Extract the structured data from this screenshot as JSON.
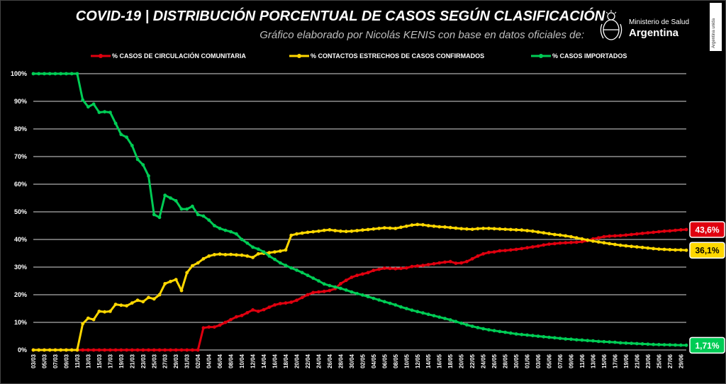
{
  "header": {
    "title": "COVID-19  |  DISTRIBUCIÓN PORCENTUAL DE CASOS SEGÚN CLASIFICACIÓN",
    "subtitle": "Gráfico elaborado por Nicolás KENIS con base en datos oficiales de:",
    "logo_ministry": "Ministerio de Salud",
    "logo_country": "Argentina",
    "side_label": "Argentina unida"
  },
  "colors": {
    "comunitaria": "#e0000f",
    "contactos": "#ffd700",
    "importados": "#00cc55",
    "grid": "#d9d9d9"
  },
  "chart_data": {
    "type": "line",
    "ylim": [
      0,
      100
    ],
    "yticks": [
      "0%",
      "10%",
      "20%",
      "30%",
      "40%",
      "50%",
      "60%",
      "70%",
      "80%",
      "90%",
      "100%"
    ],
    "xticks": [
      "03/03",
      "05/03",
      "07/03",
      "09/03",
      "11/03",
      "13/03",
      "15/03",
      "17/03",
      "19/03",
      "21/03",
      "23/03",
      "25/03",
      "27/03",
      "29/03",
      "31/03",
      "02/04",
      "04/04",
      "06/04",
      "08/04",
      "10/04",
      "12/04",
      "14/04",
      "16/04",
      "18/04",
      "20/04",
      "22/04",
      "24/04",
      "26/04",
      "28/04",
      "30/04",
      "02/05",
      "04/05",
      "06/05",
      "08/05",
      "10/05",
      "12/05",
      "14/05",
      "16/05",
      "18/05",
      "20/05",
      "22/05",
      "24/05",
      "26/05",
      "28/05",
      "30/05",
      "01/06",
      "03/06",
      "05/06",
      "07/06",
      "09/06",
      "11/06",
      "13/06",
      "15/06",
      "17/06",
      "19/06",
      "21/06",
      "23/06",
      "25/06",
      "27/06",
      "29/06"
    ],
    "n_points": 120,
    "series": [
      {
        "name": "% CASOS DE CIRCULACIÓN COMUNITARIA",
        "color_key": "comunitaria",
        "final_label": "43,6%",
        "values": [
          0,
          0,
          0,
          0,
          0,
          0,
          0,
          0,
          0,
          0,
          0,
          0,
          0,
          0,
          0,
          0,
          0,
          0,
          0,
          0,
          0,
          0,
          0,
          0,
          0,
          0,
          0,
          0,
          0,
          0,
          0,
          8,
          8.3,
          8.3,
          9,
          10,
          11,
          12,
          12.5,
          13.5,
          14.5,
          14,
          14.6,
          15.5,
          16.3,
          16.8,
          17,
          17.3,
          18,
          19,
          20,
          20.8,
          21,
          21.2,
          21.5,
          22.2,
          24,
          25.2,
          26.3,
          27,
          27.5,
          28,
          28.8,
          29.2,
          29.6,
          29.5,
          29.4,
          29.5,
          29.7,
          30.2,
          30.4,
          30.6,
          30.9,
          31.2,
          31.5,
          31.8,
          32,
          31.4,
          31.5,
          32,
          33,
          34,
          34.8,
          35.3,
          35.5,
          35.9,
          36,
          36.2,
          36.4,
          36.7,
          37,
          37.3,
          37.6,
          38,
          38.3,
          38.5,
          38.7,
          38.8,
          38.9,
          39,
          39.2,
          39.6,
          40.2,
          40.6,
          41,
          41.2,
          41.3,
          41.4,
          41.6,
          41.8,
          42,
          42.2,
          42.4,
          42.6,
          42.8,
          43,
          43.1,
          43.3,
          43.5,
          43.6
        ]
      },
      {
        "name": "% CONTACTOS ESTRECHOS DE CASOS CONFIRMADOS",
        "color_key": "contactos",
        "final_label": "36,1%",
        "values": [
          0,
          0,
          0,
          0,
          0,
          0,
          0,
          0,
          0,
          9.5,
          11.5,
          11,
          14,
          13.8,
          14,
          16.5,
          16.2,
          16,
          17,
          18,
          17.5,
          19,
          18.5,
          20,
          24,
          24.8,
          25.5,
          21.5,
          28,
          30.5,
          31.5,
          33,
          34,
          34.5,
          34.7,
          34.5,
          34.6,
          34.4,
          34.3,
          34,
          33.5,
          34.8,
          35,
          35.2,
          35.5,
          35.8,
          36.2,
          41.5,
          42,
          42.3,
          42.6,
          42.8,
          43,
          43.3,
          43.5,
          43.2,
          43,
          42.9,
          43,
          43.2,
          43.4,
          43.6,
          43.8,
          44,
          44.2,
          44.1,
          44,
          44.4,
          44.8,
          45.2,
          45.4,
          45.3,
          45,
          44.8,
          44.6,
          44.5,
          44.3,
          44.1,
          43.9,
          43.8,
          43.7,
          43.9,
          44,
          44,
          43.9,
          43.8,
          43.7,
          43.6,
          43.5,
          43.4,
          43.2,
          43,
          42.7,
          42.4,
          42.1,
          41.8,
          41.6,
          41.3,
          41,
          40.6,
          40.2,
          39.8,
          39.4,
          39.1,
          38.8,
          38.5,
          38.2,
          37.9,
          37.7,
          37.5,
          37.3,
          37.1,
          36.9,
          36.7,
          36.5,
          36.4,
          36.3,
          36.2,
          36.2,
          36.1
        ]
      },
      {
        "name": "% CASOS IMPORTADOS",
        "color_key": "importados",
        "final_label": "1,71%",
        "values": [
          100,
          100,
          100,
          100,
          100,
          100,
          100,
          100,
          100,
          90.5,
          88,
          89,
          86,
          86.2,
          86,
          82,
          78,
          77,
          74,
          69,
          67,
          63,
          49,
          48,
          56,
          55,
          54,
          51,
          51,
          52,
          49,
          48.5,
          47,
          45,
          44,
          43.3,
          42.8,
          42,
          40,
          38.7,
          37.2,
          36.5,
          35.5,
          34,
          32.8,
          31.5,
          30.6,
          29.7,
          28.9,
          28,
          27,
          26,
          25,
          23.9,
          23.3,
          22.8,
          22.3,
          21.7,
          21,
          20.4,
          19.9,
          19.3,
          18.7,
          18.1,
          17.5,
          16.9,
          16.3,
          15.6,
          15,
          14.4,
          13.9,
          13.4,
          12.9,
          12.4,
          11.9,
          11.4,
          10.9,
          10.3,
          9.7,
          9.1,
          8.6,
          8.1,
          7.7,
          7.3,
          7,
          6.7,
          6.4,
          6.1,
          5.8,
          5.6,
          5.4,
          5.2,
          5,
          4.8,
          4.6,
          4.4,
          4.2,
          4,
          3.9,
          3.7,
          3.6,
          3.4,
          3.3,
          3.1,
          3,
          2.9,
          2.8,
          2.6,
          2.5,
          2.4,
          2.3,
          2.2,
          2.1,
          2,
          1.95,
          1.9,
          1.85,
          1.8,
          1.75,
          1.71
        ]
      }
    ]
  }
}
